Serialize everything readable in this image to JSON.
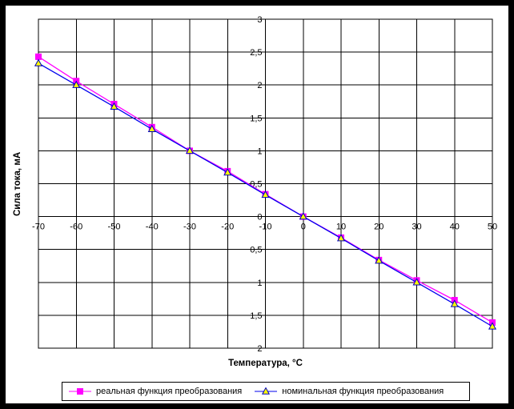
{
  "chart_data": {
    "type": "line",
    "title": "",
    "xlabel": "Температура, °C",
    "ylabel": "Сила тока, мА",
    "categories": [
      -70,
      -60,
      -50,
      -40,
      -30,
      -20,
      -10,
      0,
      10,
      20,
      30,
      40,
      50
    ],
    "x_tick_labels": [
      "-70",
      "-60",
      "-50",
      "-40",
      "-30",
      "-20",
      "-10",
      "0",
      "10",
      "20",
      "30",
      "40",
      "50"
    ],
    "ylim": [
      -2,
      3
    ],
    "y_tick_step": 0.5,
    "y_tick_labels_top_to_bottom": [
      "3",
      "2,5",
      "2",
      "1,5",
      "1",
      "0,5",
      "0",
      "0,5",
      "1",
      "1,5",
      "2"
    ],
    "grid": true,
    "legend_position": "bottom",
    "axes_cross": {
      "vertical_axis_at_category": -10,
      "horizontal_axis_at_value": 0
    },
    "colors": {
      "real_series": "#FF00FF",
      "nominal_series": "#0000EE",
      "triangle_fill": "#FFFF00",
      "triangle_border": "#0000C0",
      "grid": "#000000"
    },
    "series": [
      {
        "name": "реальная функция преобразования",
        "color": "#FF00FF",
        "marker": "square",
        "marker_fill": "#FF00FF",
        "values": [
          2.43,
          2.06,
          1.71,
          1.36,
          1.0,
          0.69,
          0.34,
          0.0,
          -0.32,
          -0.66,
          -0.97,
          -1.27,
          -1.61
        ]
      },
      {
        "name": "номинальная функция преобразования",
        "color": "#0000EE",
        "marker": "triangle-up",
        "marker_fill": "#FFFF00",
        "values": [
          2.33,
          2.0,
          1.67,
          1.33,
          1.0,
          0.67,
          0.33,
          0.0,
          -0.33,
          -0.67,
          -1.0,
          -1.33,
          -1.67
        ]
      }
    ]
  }
}
